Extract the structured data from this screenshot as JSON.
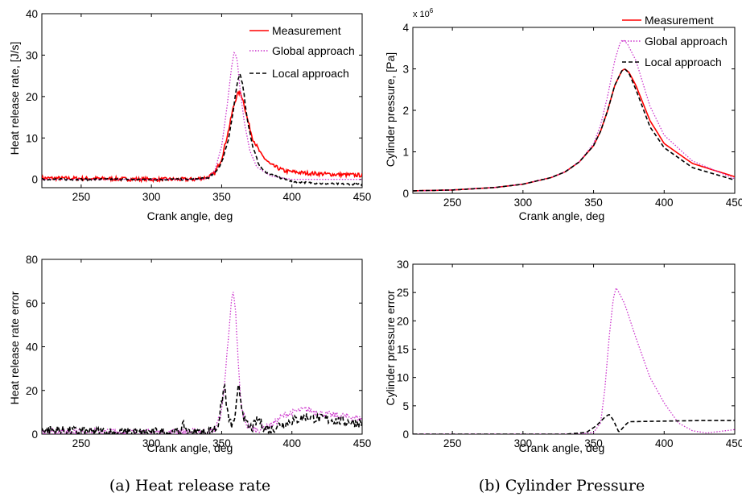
{
  "colors": {
    "measurement": "#ff0000",
    "global": "#cc33cc",
    "local": "#000000"
  },
  "captions": {
    "a": "(a) Heat release rate",
    "b": "(b) Cylinder Pressure"
  },
  "chart_data": [
    {
      "id": "hrr",
      "type": "line",
      "xlabel": "Crank angle, deg",
      "ylabel": "Heat release rate, [J/s]",
      "xlim": [
        222,
        450
      ],
      "ylim": [
        -2,
        40
      ],
      "xticks": [
        250,
        300,
        350,
        400,
        450
      ],
      "yticks": [
        0,
        10,
        20,
        30,
        40
      ],
      "grid": false,
      "legend_position": "top-right",
      "series": [
        {
          "name": "Measurement",
          "style": "solid",
          "noise": 0.45,
          "points": [
            [
              222,
              0.3
            ],
            [
              260,
              0.2
            ],
            [
              300,
              0
            ],
            [
              330,
              0
            ],
            [
              340,
              0.5
            ],
            [
              345,
              1.5
            ],
            [
              350,
              5
            ],
            [
              355,
              12
            ],
            [
              358,
              17
            ],
            [
              361,
              20.5
            ],
            [
              363,
              21
            ],
            [
              365,
              19.5
            ],
            [
              368,
              15
            ],
            [
              372,
              10
            ],
            [
              378,
              6
            ],
            [
              385,
              3.5
            ],
            [
              395,
              2
            ],
            [
              410,
              1.5
            ],
            [
              430,
              1.2
            ],
            [
              450,
              1.0
            ]
          ]
        },
        {
          "name": "Global approach",
          "style": "dotted",
          "noise": 0,
          "points": [
            [
              222,
              0
            ],
            [
              300,
              0
            ],
            [
              335,
              0
            ],
            [
              340,
              0.3
            ],
            [
              345,
              2
            ],
            [
              350,
              8
            ],
            [
              354,
              18
            ],
            [
              357,
              27
            ],
            [
              359,
              31
            ],
            [
              361,
              29
            ],
            [
              363,
              22
            ],
            [
              366,
              14
            ],
            [
              370,
              7
            ],
            [
              375,
              3
            ],
            [
              385,
              0.8
            ],
            [
              400,
              0
            ],
            [
              450,
              0
            ]
          ]
        },
        {
          "name": "Local approach",
          "style": "dashed",
          "noise": 0.2,
          "points": [
            [
              222,
              0
            ],
            [
              300,
              0
            ],
            [
              330,
              0
            ],
            [
              340,
              0.3
            ],
            [
              345,
              1.5
            ],
            [
              350,
              4
            ],
            [
              355,
              10
            ],
            [
              358,
              16
            ],
            [
              361,
              23
            ],
            [
              363,
              25.5
            ],
            [
              365,
              23
            ],
            [
              368,
              15
            ],
            [
              372,
              8
            ],
            [
              376,
              4
            ],
            [
              380,
              2
            ],
            [
              390,
              0.5
            ],
            [
              400,
              -0.5
            ],
            [
              420,
              -1
            ],
            [
              450,
              -1.2
            ]
          ]
        }
      ]
    },
    {
      "id": "pressure",
      "type": "line",
      "xlabel": "Crank angle, deg",
      "ylabel": "Cylinder pressure, [Pa]",
      "exponent": "x 10",
      "exponent_power": "6",
      "xlim": [
        222,
        450
      ],
      "ylim": [
        0,
        4
      ],
      "xticks": [
        250,
        300,
        350,
        400,
        450
      ],
      "yticks": [
        0,
        1,
        2,
        3,
        4
      ],
      "grid": false,
      "legend_position": "top-right",
      "series": [
        {
          "name": "Measurement",
          "style": "solid",
          "noise": 0,
          "points": [
            [
              222,
              0.06
            ],
            [
              250,
              0.08
            ],
            [
              280,
              0.14
            ],
            [
              300,
              0.22
            ],
            [
              320,
              0.38
            ],
            [
              330,
              0.52
            ],
            [
              340,
              0.76
            ],
            [
              350,
              1.15
            ],
            [
              355,
              1.5
            ],
            [
              360,
              2.0
            ],
            [
              365,
              2.6
            ],
            [
              370,
              2.95
            ],
            [
              372,
              3.0
            ],
            [
              375,
              2.92
            ],
            [
              380,
              2.6
            ],
            [
              390,
              1.75
            ],
            [
              400,
              1.2
            ],
            [
              420,
              0.72
            ],
            [
              450,
              0.4
            ]
          ]
        },
        {
          "name": "Global approach",
          "style": "dotted",
          "noise": 0,
          "points": [
            [
              222,
              0.06
            ],
            [
              250,
              0.08
            ],
            [
              280,
              0.14
            ],
            [
              300,
              0.22
            ],
            [
              320,
              0.38
            ],
            [
              330,
              0.52
            ],
            [
              340,
              0.76
            ],
            [
              350,
              1.2
            ],
            [
              355,
              1.65
            ],
            [
              360,
              2.35
            ],
            [
              365,
              3.2
            ],
            [
              369,
              3.65
            ],
            [
              371,
              3.7
            ],
            [
              374,
              3.6
            ],
            [
              380,
              3.2
            ],
            [
              390,
              2.1
            ],
            [
              400,
              1.4
            ],
            [
              420,
              0.78
            ],
            [
              450,
              0.35
            ]
          ]
        },
        {
          "name": "Local approach",
          "style": "dashed",
          "noise": 0,
          "points": [
            [
              222,
              0.06
            ],
            [
              250,
              0.08
            ],
            [
              280,
              0.14
            ],
            [
              300,
              0.22
            ],
            [
              320,
              0.38
            ],
            [
              330,
              0.52
            ],
            [
              340,
              0.76
            ],
            [
              350,
              1.15
            ],
            [
              355,
              1.5
            ],
            [
              360,
              2.0
            ],
            [
              365,
              2.6
            ],
            [
              370,
              2.95
            ],
            [
              372,
              3.0
            ],
            [
              375,
              2.9
            ],
            [
              380,
              2.5
            ],
            [
              390,
              1.6
            ],
            [
              400,
              1.1
            ],
            [
              420,
              0.62
            ],
            [
              450,
              0.32
            ]
          ]
        }
      ]
    },
    {
      "id": "hrr_error",
      "type": "line",
      "xlabel": "Crank angle, deg",
      "ylabel": "Heat release rate error",
      "xlim": [
        222,
        450
      ],
      "ylim": [
        0,
        80
      ],
      "xticks": [
        250,
        300,
        350,
        400,
        450
      ],
      "yticks": [
        0,
        20,
        40,
        60,
        80
      ],
      "grid": false,
      "series": [
        {
          "name": "Global approach",
          "style": "dotted",
          "noise": 0.8,
          "points": [
            [
              222,
              1.5
            ],
            [
              300,
              0.8
            ],
            [
              340,
              1
            ],
            [
              345,
              2
            ],
            [
              350,
              10
            ],
            [
              353,
              30
            ],
            [
              356,
              55
            ],
            [
              358,
              65
            ],
            [
              360,
              55
            ],
            [
              362,
              30
            ],
            [
              364,
              12
            ],
            [
              368,
              4
            ],
            [
              375,
              2
            ],
            [
              385,
              4
            ],
            [
              395,
              9
            ],
            [
              410,
              11.5
            ],
            [
              425,
              9
            ],
            [
              440,
              8
            ],
            [
              450,
              7
            ]
          ]
        },
        {
          "name": "Local approach",
          "style": "dashed",
          "noise": 1.1,
          "points": [
            [
              222,
              2
            ],
            [
              260,
              1
            ],
            [
              300,
              0.8
            ],
            [
              320,
              1
            ],
            [
              323,
              4
            ],
            [
              326,
              0.8
            ],
            [
              340,
              1
            ],
            [
              347,
              3
            ],
            [
              350,
              14
            ],
            [
              352,
              23
            ],
            [
              354,
              10
            ],
            [
              356,
              5
            ],
            [
              358,
              4
            ],
            [
              360,
              10
            ],
            [
              362,
              22
            ],
            [
              364,
              14
            ],
            [
              367,
              5
            ],
            [
              370,
              3
            ],
            [
              372,
              3
            ],
            [
              376,
              7
            ],
            [
              380,
              3
            ],
            [
              385,
              2
            ],
            [
              390,
              4
            ],
            [
              400,
              6
            ],
            [
              410,
              8
            ],
            [
              420,
              7
            ],
            [
              435,
              6
            ],
            [
              450,
              5
            ]
          ]
        }
      ]
    },
    {
      "id": "pressure_error",
      "type": "line",
      "xlabel": "Crank angle, deg",
      "ylabel": "Cylinder pressure error",
      "xlim": [
        222,
        450
      ],
      "ylim": [
        0,
        30
      ],
      "xticks": [
        250,
        300,
        350,
        400,
        450
      ],
      "yticks": [
        0,
        5,
        10,
        15,
        20,
        25,
        30
      ],
      "grid": false,
      "series": [
        {
          "name": "Global approach",
          "style": "dotted",
          "noise": 0,
          "points": [
            [
              222,
              0
            ],
            [
              340,
              0
            ],
            [
              350,
              0.3
            ],
            [
              355,
              2
            ],
            [
              358,
              8
            ],
            [
              361,
              17
            ],
            [
              364,
              24
            ],
            [
              366,
              25.8
            ],
            [
              368,
              25
            ],
            [
              372,
              23
            ],
            [
              380,
              17
            ],
            [
              390,
              10
            ],
            [
              400,
              5.5
            ],
            [
              410,
              2
            ],
            [
              420,
              0.6
            ],
            [
              430,
              0.2
            ],
            [
              450,
              0.8
            ]
          ]
        },
        {
          "name": "Local approach",
          "style": "dashed",
          "noise": 0,
          "points": [
            [
              222,
              0
            ],
            [
              330,
              0
            ],
            [
              345,
              0.3
            ],
            [
              352,
              1.5
            ],
            [
              358,
              3
            ],
            [
              361,
              3.5
            ],
            [
              364,
              2.5
            ],
            [
              368,
              0.3
            ],
            [
              372,
              1.5
            ],
            [
              375,
              2.2
            ],
            [
              400,
              2.3
            ],
            [
              425,
              2.4
            ],
            [
              450,
              2.4
            ]
          ]
        }
      ]
    }
  ]
}
